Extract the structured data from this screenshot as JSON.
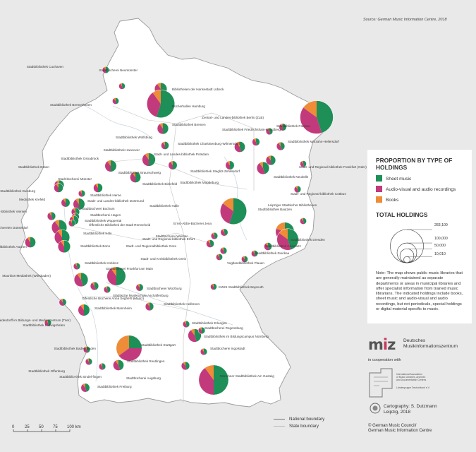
{
  "source": "Source: German Music Information Centre, 2018",
  "colors": {
    "sheet_music": "#1e8f57",
    "audio_visual": "#c23a7c",
    "books": "#ee8c37",
    "land": "#ffffff",
    "background": "#e9e9e9",
    "boundary": "#9a9a9a"
  },
  "legend": {
    "title_line1": "PROPORTION BY TYPE OF",
    "title_line2": "HOLDINGS",
    "items": [
      {
        "label": "Sheet music",
        "color": "#1e8f57"
      },
      {
        "label": "Audio-visual and audio recordings",
        "color": "#c23a7c"
      },
      {
        "label": "Books",
        "color": "#ee8c37"
      }
    ],
    "total_title": "TOTAL HOLDINGS",
    "sizes": [
      "283,100",
      "100,000",
      "50,000",
      "10,010"
    ],
    "size_values": [
      283100,
      100000,
      50000,
      10010
    ],
    "note": "Note: The map shows public music libraries that are generally maintained as separate departments or areas in municipal libraries and offer specialist information from trained music librarians. The indicated holdings include books, sheet music and audio-visual and audio recordings, but not periodicals, special holdings or digital material specific to music."
  },
  "boundaries": {
    "national": "National boundary",
    "state": "State boundary"
  },
  "scale": {
    "ticks": [
      "0",
      "25",
      "50",
      "75",
      "100 km"
    ]
  },
  "publisher": {
    "logo_text": "miz",
    "name_line1": "Deutsches",
    "name_line2": "Musikinformationszentrum",
    "cooperation": "in cooperation with",
    "iaml_line1": "International Association",
    "iaml_line2": "of Music Libraries, Archives",
    "iaml_line3": "and Documentation Centres",
    "iaml_line4": "Ländergruppe Deutschland e.V.",
    "carto_line1": "Cartography:  S. Dutzmann",
    "carto_line2": "Leipzig, 2018",
    "copyright_line1": "© German Music Council/",
    "copyright_line2": "German Music Information Centre"
  },
  "libraries": [
    {
      "name": "Stadtbibliothek Cuxhaven",
      "total": 12000,
      "shares": [
        0.5,
        0.4,
        0.1
      ]
    },
    {
      "name": "Stadtbücherei Neumünster",
      "total": 10500,
      "shares": [
        0.45,
        0.45,
        0.1
      ]
    },
    {
      "name": "Bibliotheken der Hansestadt Lübeck",
      "total": 40000,
      "shares": [
        0.45,
        0.45,
        0.1
      ]
    },
    {
      "name": "Bücherhallen Hamburg",
      "total": 200000,
      "shares": [
        0.55,
        0.35,
        0.1
      ]
    },
    {
      "name": "Stadtbibliothek Bremerhaven",
      "total": 11000,
      "shares": [
        0.45,
        0.45,
        0.1
      ]
    },
    {
      "name": "Stadtbibliothek Bremen",
      "total": 33000,
      "shares": [
        0.5,
        0.4,
        0.1
      ]
    },
    {
      "name": "Zentral- und Landes-bibliothek Berlin (ZLB)",
      "total": 283100,
      "shares": [
        0.45,
        0.4,
        0.15
      ]
    },
    {
      "name": "Stadtbibliothek Friedrichshain-Kreuzberg",
      "total": 12000,
      "shares": [
        0.45,
        0.45,
        0.1
      ]
    },
    {
      "name": "Stadtbibliothek Pankow",
      "total": 14000,
      "shares": [
        0.5,
        0.4,
        0.1
      ]
    },
    {
      "name": "Stadtbibliothek Charlottenburg-Wilmersdorf",
      "total": 15000,
      "shares": [
        0.45,
        0.45,
        0.1
      ]
    },
    {
      "name": "Stadtbibliothek Marzahn-Hellersdorf",
      "total": 18000,
      "shares": [
        0.45,
        0.45,
        0.1
      ]
    },
    {
      "name": "Stadt- und Landes-bibliothek Potsdam",
      "total": 30000,
      "shares": [
        0.45,
        0.45,
        0.1
      ]
    },
    {
      "name": "Stadtbibliothek Steglitz-Zehlendorf",
      "total": 40000,
      "shares": [
        0.45,
        0.45,
        0.1
      ]
    },
    {
      "name": "Stadtbibliothek Neukölln",
      "total": 25000,
      "shares": [
        0.5,
        0.4,
        0.1
      ]
    },
    {
      "name": "Stadt- und Regional-bibliothek Frankfurt (Oder)",
      "total": 10500,
      "shares": [
        0.45,
        0.45,
        0.1
      ]
    },
    {
      "name": "Stadtbibliothek Wolfsburg",
      "total": 16000,
      "shares": [
        0.5,
        0.4,
        0.1
      ]
    },
    {
      "name": "Stadtbibliothek Hannover",
      "total": 45000,
      "shares": [
        0.5,
        0.4,
        0.1
      ]
    },
    {
      "name": "Stadtbibliothek Braunschweig",
      "total": 20000,
      "shares": [
        0.5,
        0.4,
        0.1
      ]
    },
    {
      "name": "Stadtbibliothek Magdeburg",
      "total": 20000,
      "shares": [
        0.5,
        0.4,
        0.1
      ]
    },
    {
      "name": "Stadt- und Regional-bibliothek Cottbus",
      "total": 12000,
      "shares": [
        0.45,
        0.45,
        0.1
      ]
    },
    {
      "name": "Stadtbibliothek Osnabrück",
      "total": 35000,
      "shares": [
        0.5,
        0.4,
        0.1
      ]
    },
    {
      "name": "Stadtbibliothek Essen",
      "total": 25000,
      "shares": [
        0.5,
        0.4,
        0.1
      ]
    },
    {
      "name": "Stadt-bücherei Münster",
      "total": 22000,
      "shares": [
        0.5,
        0.4,
        0.1
      ]
    },
    {
      "name": "Stadtbibliothek Bielefeld",
      "total": 30000,
      "shares": [
        0.5,
        0.4,
        0.1
      ]
    },
    {
      "name": "Stadtbibliothek Herne",
      "total": 12000,
      "shares": [
        0.45,
        0.45,
        0.1
      ]
    },
    {
      "name": "Stadtbibliothek Halle",
      "total": 180000,
      "shares": [
        0.55,
        0.3,
        0.15
      ]
    },
    {
      "name": "Leipziger Städtischer Bibliotheken",
      "total": 90000,
      "shares": [
        0.45,
        0.35,
        0.2
      ]
    },
    {
      "name": "Stadtbibliothek Bautzen",
      "total": 11000,
      "shares": [
        0.45,
        0.45,
        0.1
      ]
    },
    {
      "name": "Stadtbibliothek Dresden",
      "total": 120000,
      "shares": [
        0.45,
        0.4,
        0.15
      ]
    },
    {
      "name": "Stadtbibliothek Chemnitz",
      "total": 16000,
      "shares": [
        0.45,
        0.45,
        0.1
      ]
    },
    {
      "name": "Stadtbibliothek Zwickau",
      "total": 11000,
      "shares": [
        0.45,
        0.45,
        0.1
      ]
    },
    {
      "name": "Stadtbücherei Weimar",
      "total": 12000,
      "shares": [
        0.45,
        0.45,
        0.1
      ]
    },
    {
      "name": "Ernst-Abbe-Bücherei Jena",
      "total": 14000,
      "shares": [
        0.45,
        0.45,
        0.1
      ]
    },
    {
      "name": "Stadt- und Regional-bibliothek Erfurt",
      "total": 16000,
      "shares": [
        0.45,
        0.45,
        0.1
      ]
    },
    {
      "name": "Stadt- und Regionalbibliothek Gera",
      "total": 12000,
      "shares": [
        0.45,
        0.45,
        0.1
      ]
    },
    {
      "name": "Stadt- und Kreisbibliothek Greiz",
      "total": 11000,
      "shares": [
        0.45,
        0.45,
        0.1
      ]
    },
    {
      "name": "Vogtlandbibliothek Plauen",
      "total": 11000,
      "shares": [
        0.5,
        0.4,
        0.1
      ]
    },
    {
      "name": "Stadtbibliothek Duisburg",
      "total": 22000,
      "shares": [
        0.5,
        0.4,
        0.1
      ]
    },
    {
      "name": "Mediothek Krefeld",
      "total": 20000,
      "shares": [
        0.5,
        0.4,
        0.1
      ]
    },
    {
      "name": "Albert Vigoleis Thelen Stadt-bibliothek Viersen",
      "total": 18000,
      "shares": [
        0.45,
        0.45,
        0.1
      ]
    },
    {
      "name": "Stadtbüchereien Düsseldorf",
      "total": 60000,
      "shares": [
        0.45,
        0.45,
        0.1
      ]
    },
    {
      "name": "Stadt- und Landes-bibliothek Dortmund",
      "total": 35000,
      "shares": [
        0.5,
        0.4,
        0.1
      ]
    },
    {
      "name": "Stadtbücherei Bochum",
      "total": 18000,
      "shares": [
        0.45,
        0.45,
        0.1
      ]
    },
    {
      "name": "Stadtbücherei Hagen",
      "total": 15000,
      "shares": [
        0.45,
        0.45,
        0.1
      ]
    },
    {
      "name": "Stadtbibliothek Wuppertal",
      "total": 22000,
      "shares": [
        0.45,
        0.45,
        0.1
      ]
    },
    {
      "name": "Öffentliche Bibliothek der Stadt Remscheid",
      "total": 12000,
      "shares": [
        0.45,
        0.45,
        0.1
      ]
    },
    {
      "name": "Stadtbibliothek Köln",
      "total": 60000,
      "shares": [
        0.5,
        0.4,
        0.1
      ]
    },
    {
      "name": "Stadtbibliothek Aachen",
      "total": 30000,
      "shares": [
        0.5,
        0.4,
        0.1
      ]
    },
    {
      "name": "Stadtbibliothek Bonn",
      "total": 40000,
      "shares": [
        0.5,
        0.4,
        0.1
      ]
    },
    {
      "name": "Stadtbibliothek Koblenz",
      "total": 12000,
      "shares": [
        0.45,
        0.45,
        0.1
      ]
    },
    {
      "name": "Mauritius-Mediathek (Wiesbaden)",
      "total": 50000,
      "shares": [
        0.45,
        0.45,
        0.1
      ]
    },
    {
      "name": "Stadtbücherei Frankfurt am Main",
      "total": 90000,
      "shares": [
        0.5,
        0.4,
        0.1
      ]
    },
    {
      "name": "Öffentliche Bücherei Anna Seghers (Mainz)",
      "total": 18000,
      "shares": [
        0.45,
        0.45,
        0.1
      ]
    },
    {
      "name": "Stadtbibliothek Palais Walderdorff im Bildungs- und Medienzentrum (Trier)",
      "total": 14000,
      "shares": [
        0.45,
        0.45,
        0.1
      ]
    },
    {
      "name": "Städtische Musikschule Aschaffenburg",
      "total": 12000,
      "shares": [
        0.45,
        0.45,
        0.1
      ]
    },
    {
      "name": "Stadtbücherei Würzburg",
      "total": 14000,
      "shares": [
        0.5,
        0.4,
        0.1
      ]
    },
    {
      "name": "KW21 Stadtbibliothek Bayreuth",
      "total": 10500,
      "shares": [
        0.5,
        0.4,
        0.1
      ]
    },
    {
      "name": "Stadtbibliothek Ludwigshafen",
      "total": 12000,
      "shares": [
        0.45,
        0.45,
        0.1
      ]
    },
    {
      "name": "Stadtbibliothek Mannheim",
      "total": 35000,
      "shares": [
        0.5,
        0.4,
        0.1
      ]
    },
    {
      "name": "Stadtbibliothek Erlangen",
      "total": 12000,
      "shares": [
        0.45,
        0.45,
        0.1
      ]
    },
    {
      "name": "Stadtbibliothek im Bildungscampus Nürnberg",
      "total": 45000,
      "shares": [
        0.45,
        0.45,
        0.1
      ]
    },
    {
      "name": "Stadtbibliothek Heilbronn",
      "total": 18000,
      "shares": [
        0.45,
        0.45,
        0.1
      ]
    },
    {
      "name": "Stadtbücherei Regensburg",
      "total": 12000,
      "shares": [
        0.5,
        0.4,
        0.1
      ]
    },
    {
      "name": "Stadtbibliothek Baden-Baden",
      "total": 12000,
      "shares": [
        0.45,
        0.45,
        0.1
      ]
    },
    {
      "name": "Stadtbibliothek Stuttgart",
      "total": 170000,
      "shares": [
        0.25,
        0.4,
        0.35
      ]
    },
    {
      "name": "Stadtbücherei Ingolstadt",
      "total": 12000,
      "shares": [
        0.45,
        0.45,
        0.1
      ]
    },
    {
      "name": "Stadtbibliothek Reutlingen",
      "total": 30000,
      "shares": [
        0.45,
        0.45,
        0.1
      ]
    },
    {
      "name": "Stadtbibliothek Offenburg",
      "total": 12000,
      "shares": [
        0.45,
        0.45,
        0.1
      ]
    },
    {
      "name": "Stadtbiblio-thek Sindel-fingen",
      "total": 12000,
      "shares": [
        0.45,
        0.45,
        0.1
      ]
    },
    {
      "name": "Stadtbibliothek Freiburg",
      "total": 20000,
      "shares": [
        0.45,
        0.45,
        0.1
      ]
    },
    {
      "name": "Stadtbücherei Augsburg",
      "total": 18000,
      "shares": [
        0.45,
        0.45,
        0.1
      ]
    },
    {
      "name": "Münchner Stadtbibliothek Am Gasteig",
      "total": 230000,
      "shares": [
        0.5,
        0.4,
        0.1
      ]
    }
  ]
}
